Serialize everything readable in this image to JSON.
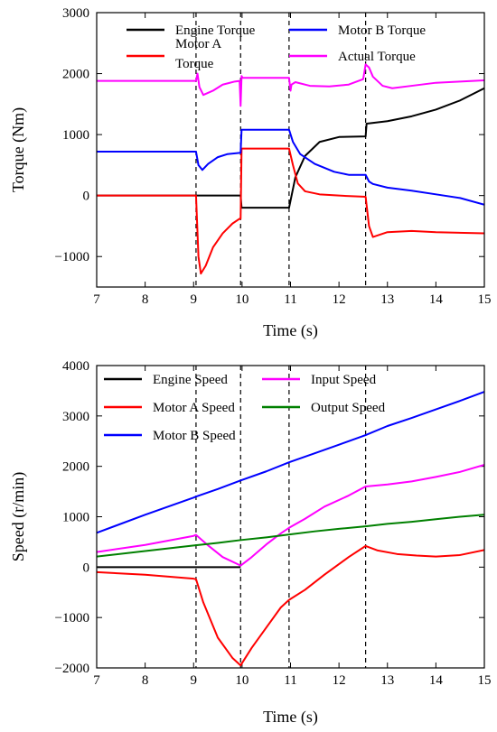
{
  "chart_data": [
    {
      "type": "line",
      "xlabel": "Time (s)",
      "ylabel": "Torque (Nm)",
      "xlim": [
        7,
        15
      ],
      "ylim": [
        -1500,
        3000
      ],
      "xticks": [
        7,
        8,
        9,
        10,
        11,
        12,
        13,
        14,
        15
      ],
      "yticks": [
        -1000,
        0,
        1000,
        2000,
        3000
      ],
      "ytick_labels": [
        "−1000",
        "0",
        "1000",
        "2000",
        "3000"
      ],
      "vlines": [
        9.05,
        9.97,
        10.97,
        12.55
      ],
      "legend": [
        {
          "label": "Engine Torque",
          "series": 0
        },
        {
          "label": "Motor A",
          "label2": "Torque",
          "series": 1
        },
        {
          "label": "Motor B Torque",
          "series": 2
        },
        {
          "label": "Actual Torque",
          "series": 3
        }
      ],
      "series": [
        {
          "name": "Engine Torque",
          "color": "#000000",
          "points": [
            [
              7,
              0
            ],
            [
              9.05,
              0
            ],
            [
              9.97,
              0
            ],
            [
              9.99,
              -200
            ],
            [
              10.97,
              -200
            ],
            [
              11.1,
              300
            ],
            [
              11.3,
              650
            ],
            [
              11.6,
              880
            ],
            [
              12,
              960
            ],
            [
              12.55,
              970
            ],
            [
              12.57,
              1180
            ],
            [
              13,
              1220
            ],
            [
              13.5,
              1300
            ],
            [
              14,
              1410
            ],
            [
              14.5,
              1560
            ],
            [
              15,
              1760
            ]
          ]
        },
        {
          "name": "Motor A Torque",
          "color": "#ff0000",
          "points": [
            [
              7,
              0
            ],
            [
              9.05,
              0
            ],
            [
              9.1,
              -1000
            ],
            [
              9.15,
              -1280
            ],
            [
              9.25,
              -1150
            ],
            [
              9.4,
              -850
            ],
            [
              9.6,
              -620
            ],
            [
              9.8,
              -460
            ],
            [
              9.95,
              -380
            ],
            [
              9.97,
              -380
            ],
            [
              9.99,
              770
            ],
            [
              10.97,
              770
            ],
            [
              11.05,
              500
            ],
            [
              11.15,
              200
            ],
            [
              11.3,
              70
            ],
            [
              11.6,
              20
            ],
            [
              12,
              0
            ],
            [
              12.55,
              -20
            ],
            [
              12.62,
              -500
            ],
            [
              12.7,
              -680
            ],
            [
              13,
              -600
            ],
            [
              13.5,
              -580
            ],
            [
              14,
              -600
            ],
            [
              15,
              -620
            ]
          ]
        },
        {
          "name": "Motor B Torque",
          "color": "#0000ff",
          "points": [
            [
              7,
              720
            ],
            [
              9.05,
              720
            ],
            [
              9.1,
              500
            ],
            [
              9.18,
              420
            ],
            [
              9.3,
              520
            ],
            [
              9.5,
              630
            ],
            [
              9.7,
              680
            ],
            [
              9.95,
              700
            ],
            [
              9.97,
              700
            ],
            [
              9.99,
              1080
            ],
            [
              10.97,
              1080
            ],
            [
              11.05,
              880
            ],
            [
              11.2,
              680
            ],
            [
              11.5,
              520
            ],
            [
              11.9,
              390
            ],
            [
              12.2,
              340
            ],
            [
              12.55,
              340
            ],
            [
              12.62,
              230
            ],
            [
              12.7,
              190
            ],
            [
              13,
              130
            ],
            [
              13.5,
              80
            ],
            [
              14,
              20
            ],
            [
              14.5,
              -40
            ],
            [
              15,
              -150
            ]
          ]
        },
        {
          "name": "Actual Torque",
          "color": "#ff00ff",
          "points": [
            [
              7,
              1880
            ],
            [
              9.05,
              1880
            ],
            [
              9.08,
              2000
            ],
            [
              9.12,
              1780
            ],
            [
              9.2,
              1650
            ],
            [
              9.4,
              1720
            ],
            [
              9.6,
              1820
            ],
            [
              9.85,
              1870
            ],
            [
              9.95,
              1880
            ],
            [
              9.97,
              1470
            ],
            [
              9.99,
              1960
            ],
            [
              10.01,
              1930
            ],
            [
              10.97,
              1930
            ],
            [
              11.0,
              1720
            ],
            [
              11.02,
              1820
            ],
            [
              11.1,
              1860
            ],
            [
              11.4,
              1800
            ],
            [
              11.8,
              1790
            ],
            [
              12.2,
              1820
            ],
            [
              12.5,
              1910
            ],
            [
              12.55,
              2150
            ],
            [
              12.62,
              2100
            ],
            [
              12.7,
              1950
            ],
            [
              12.9,
              1800
            ],
            [
              13.1,
              1760
            ],
            [
              13.5,
              1800
            ],
            [
              14,
              1850
            ],
            [
              14.5,
              1870
            ],
            [
              15,
              1890
            ]
          ]
        }
      ]
    },
    {
      "type": "line",
      "xlabel": "Time (s)",
      "ylabel": "Speed (r/min)",
      "xlim": [
        7,
        15
      ],
      "ylim": [
        -2000,
        4000
      ],
      "xticks": [
        7,
        8,
        9,
        10,
        11,
        12,
        13,
        14,
        15
      ],
      "yticks": [
        -2000,
        -1000,
        0,
        1000,
        2000,
        3000,
        4000
      ],
      "ytick_labels": [
        "−2000",
        "−1000",
        "0",
        "1000",
        "2000",
        "3000",
        "4000"
      ],
      "vlines": [
        9.05,
        9.97,
        10.97,
        12.55
      ],
      "legend": [
        {
          "label": "Engine Speed",
          "series": 0
        },
        {
          "label": "Input Speed",
          "series": 3
        },
        {
          "label": "Motor A Speed",
          "series": 1
        },
        {
          "label": "Output Speed",
          "series": 4
        },
        {
          "label": "Motor B Speed",
          "series": 2
        }
      ],
      "series": [
        {
          "name": "Engine Speed",
          "color": "#000000",
          "points": [
            [
              7,
              0
            ],
            [
              9.97,
              0
            ]
          ]
        },
        {
          "name": "Motor A Speed",
          "color": "#ff0000",
          "points": [
            [
              7,
              -100
            ],
            [
              8,
              -150
            ],
            [
              9,
              -230
            ],
            [
              9.05,
              -240
            ],
            [
              9.2,
              -700
            ],
            [
              9.5,
              -1400
            ],
            [
              9.8,
              -1800
            ],
            [
              9.97,
              -1950
            ],
            [
              10.2,
              -1600
            ],
            [
              10.5,
              -1200
            ],
            [
              10.8,
              -800
            ],
            [
              10.97,
              -650
            ],
            [
              11.3,
              -450
            ],
            [
              11.7,
              -150
            ],
            [
              12.2,
              200
            ],
            [
              12.55,
              420
            ],
            [
              12.8,
              330
            ],
            [
              13.2,
              260
            ],
            [
              13.6,
              230
            ],
            [
              14,
              210
            ],
            [
              14.5,
              240
            ],
            [
              15,
              340
            ]
          ]
        },
        {
          "name": "Motor B Speed",
          "color": "#0000ff",
          "points": [
            [
              7,
              680
            ],
            [
              8,
              1040
            ],
            [
              9,
              1380
            ],
            [
              9.05,
              1400
            ],
            [
              9.5,
              1550
            ],
            [
              9.97,
              1720
            ],
            [
              10.5,
              1900
            ],
            [
              10.97,
              2080
            ],
            [
              11.5,
              2260
            ],
            [
              12,
              2430
            ],
            [
              12.55,
              2620
            ],
            [
              13,
              2800
            ],
            [
              13.5,
              2960
            ],
            [
              14,
              3130
            ],
            [
              14.5,
              3300
            ],
            [
              15,
              3480
            ]
          ]
        },
        {
          "name": "Input Speed",
          "color": "#ff00ff",
          "points": [
            [
              7,
              300
            ],
            [
              8,
              440
            ],
            [
              9,
              620
            ],
            [
              9.05,
              640
            ],
            [
              9.3,
              430
            ],
            [
              9.6,
              200
            ],
            [
              9.97,
              30
            ],
            [
              10.2,
              200
            ],
            [
              10.5,
              450
            ],
            [
              10.8,
              670
            ],
            [
              10.97,
              780
            ],
            [
              11.3,
              960
            ],
            [
              11.7,
              1200
            ],
            [
              12.2,
              1420
            ],
            [
              12.55,
              1600
            ],
            [
              13,
              1640
            ],
            [
              13.5,
              1700
            ],
            [
              14,
              1790
            ],
            [
              14.5,
              1890
            ],
            [
              15,
              2030
            ]
          ]
        },
        {
          "name": "Output Speed",
          "color": "#008000",
          "points": [
            [
              7,
              210
            ],
            [
              8,
              320
            ],
            [
              9,
              430
            ],
            [
              9.5,
              480
            ],
            [
              10,
              540
            ],
            [
              10.5,
              590
            ],
            [
              11,
              650
            ],
            [
              11.5,
              710
            ],
            [
              12,
              760
            ],
            [
              12.55,
              810
            ],
            [
              13,
              860
            ],
            [
              13.5,
              900
            ],
            [
              14,
              950
            ],
            [
              14.5,
              1000
            ],
            [
              15,
              1040
            ]
          ]
        }
      ]
    }
  ]
}
